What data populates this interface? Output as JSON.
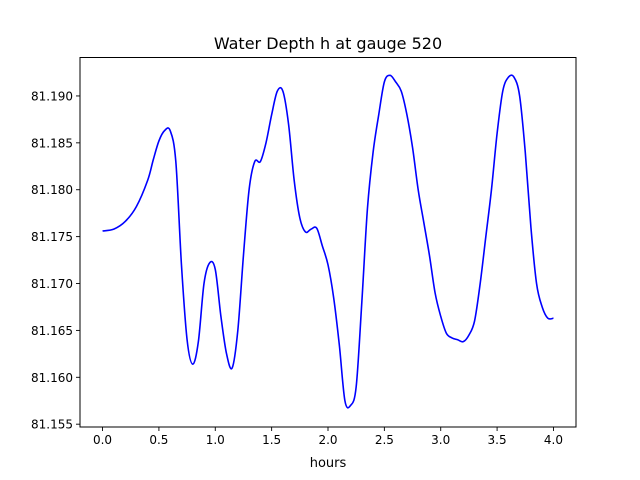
{
  "chart_data": {
    "type": "line",
    "title": "Water Depth h at gauge 520",
    "xlabel": "hours",
    "ylabel": "",
    "xlim": [
      -0.2,
      4.2
    ],
    "ylim": [
      81.1547,
      81.1941
    ],
    "xticks": [
      0.0,
      0.5,
      1.0,
      1.5,
      2.0,
      2.5,
      3.0,
      3.5,
      4.0
    ],
    "xtick_labels": [
      "0.0",
      "0.5",
      "1.0",
      "1.5",
      "2.0",
      "2.5",
      "3.0",
      "3.5",
      "4.0"
    ],
    "yticks": [
      81.155,
      81.16,
      81.165,
      81.17,
      81.175,
      81.18,
      81.185,
      81.19
    ],
    "ytick_labels": [
      "81.155",
      "81.160",
      "81.165",
      "81.170",
      "81.175",
      "81.180",
      "81.185",
      "81.190"
    ],
    "grid": false,
    "series": [
      {
        "color": "#0000ff",
        "x": [
          0.0,
          0.1,
          0.2,
          0.3,
          0.4,
          0.45,
          0.5,
          0.55,
          0.6,
          0.65,
          0.7,
          0.75,
          0.8,
          0.85,
          0.9,
          0.95,
          1.0,
          1.05,
          1.1,
          1.15,
          1.2,
          1.25,
          1.3,
          1.35,
          1.4,
          1.45,
          1.5,
          1.55,
          1.6,
          1.65,
          1.7,
          1.75,
          1.8,
          1.85,
          1.9,
          1.95,
          2.0,
          2.05,
          2.1,
          2.15,
          2.2,
          2.25,
          2.3,
          2.35,
          2.4,
          2.45,
          2.5,
          2.55,
          2.6,
          2.65,
          2.7,
          2.75,
          2.8,
          2.85,
          2.9,
          2.95,
          3.0,
          3.05,
          3.1,
          3.15,
          3.2,
          3.25,
          3.3,
          3.35,
          3.4,
          3.45,
          3.5,
          3.55,
          3.6,
          3.65,
          3.7,
          3.75,
          3.8,
          3.85,
          3.9,
          3.95,
          4.0
        ],
        "y": [
          81.1756,
          81.1758,
          81.1766,
          81.1782,
          81.181,
          81.1832,
          81.1852,
          81.1863,
          81.1863,
          81.183,
          81.172,
          81.164,
          81.1614,
          81.1638,
          81.17,
          81.1722,
          81.1715,
          81.1665,
          81.1625,
          81.161,
          81.165,
          81.173,
          81.18,
          81.183,
          81.183,
          81.185,
          81.188,
          81.1905,
          81.1905,
          81.187,
          81.181,
          81.177,
          81.1755,
          81.1758,
          81.1759,
          81.174,
          81.172,
          81.1685,
          81.1635,
          81.1575,
          81.157,
          81.159,
          81.168,
          81.178,
          81.184,
          81.188,
          81.1915,
          81.1922,
          81.1915,
          81.1905,
          81.188,
          81.1845,
          81.18,
          81.1765,
          81.173,
          81.169,
          81.1665,
          81.1647,
          81.1642,
          81.164,
          81.1638,
          81.1645,
          81.166,
          81.17,
          81.175,
          81.18,
          81.186,
          81.1905,
          81.192,
          81.192,
          81.19,
          81.184,
          81.176,
          81.17,
          81.1675,
          81.1663,
          81.1663
        ]
      }
    ]
  }
}
